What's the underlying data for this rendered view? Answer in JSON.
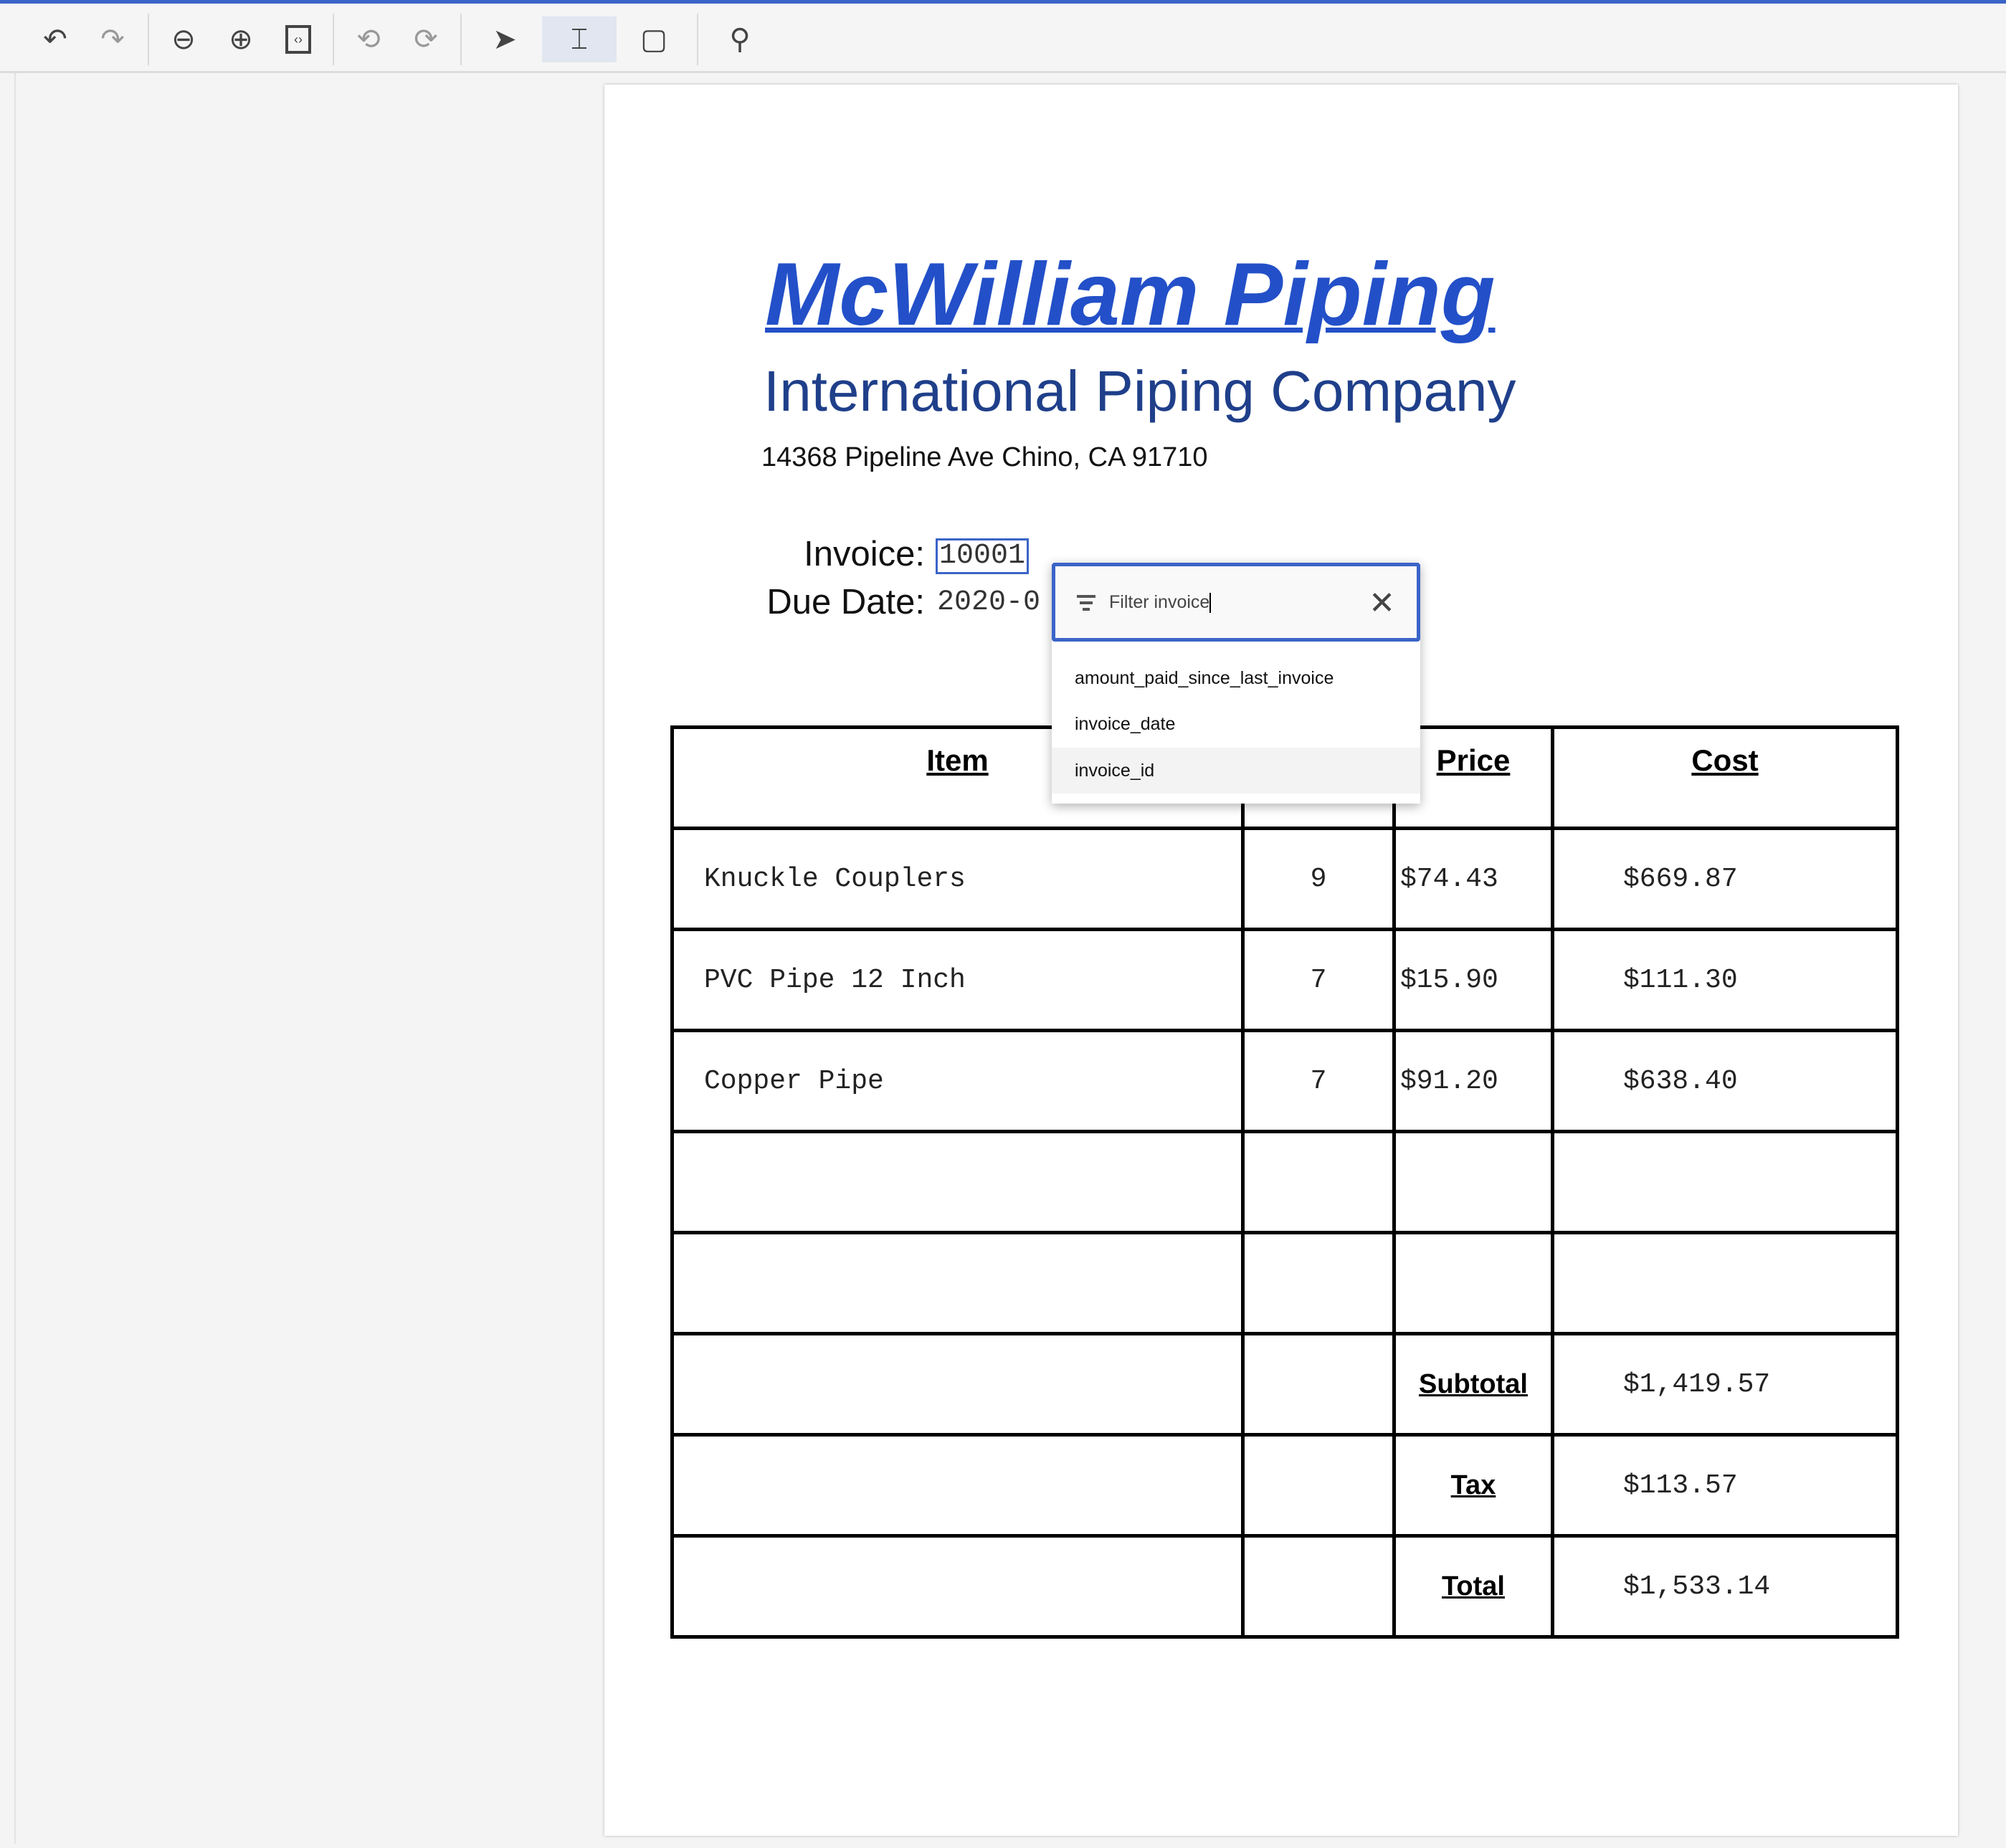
{
  "toolbar": {
    "icons": [
      "undo-icon",
      "redo-icon",
      "zoom-out-icon",
      "zoom-in-icon",
      "fit-page-icon",
      "rotate-left-icon",
      "rotate-right-icon",
      "pointer-icon",
      "text-select-icon",
      "add-region-icon",
      "search-icon"
    ],
    "active": "text-select-icon",
    "accent": "#3b64c8"
  },
  "document": {
    "company": "McWilliam Piping",
    "subtitle": "International Piping Company",
    "address": "14368 Pipeline Ave Chino, CA 91710",
    "invoice_label": "Invoice:",
    "invoice_value": "10001",
    "due_label": "Due Date:",
    "due_value": "2020-0",
    "table": {
      "headers": [
        "Item",
        "",
        "Price",
        "Cost"
      ],
      "rows": [
        {
          "item": "Knuckle Couplers",
          "qty": "9",
          "price": "$74.43",
          "cost": "$669.87"
        },
        {
          "item": "PVC Pipe 12 Inch",
          "qty": "7",
          "price": "$15.90",
          "cost": "$111.30"
        },
        {
          "item": "Copper Pipe",
          "qty": "7",
          "price": "$91.20",
          "cost": "$638.40"
        }
      ],
      "summary": [
        {
          "label": "Subtotal",
          "value": "$1,419.57"
        },
        {
          "label": "Tax",
          "value": "$113.57"
        },
        {
          "label": "Total",
          "value": "$1,533.14"
        }
      ]
    }
  },
  "popup": {
    "filter_value": "Filter invoice",
    "options": [
      "amount_paid_since_last_invoice",
      "invoice_date",
      "invoice_id"
    ],
    "highlighted": "invoice_id"
  }
}
